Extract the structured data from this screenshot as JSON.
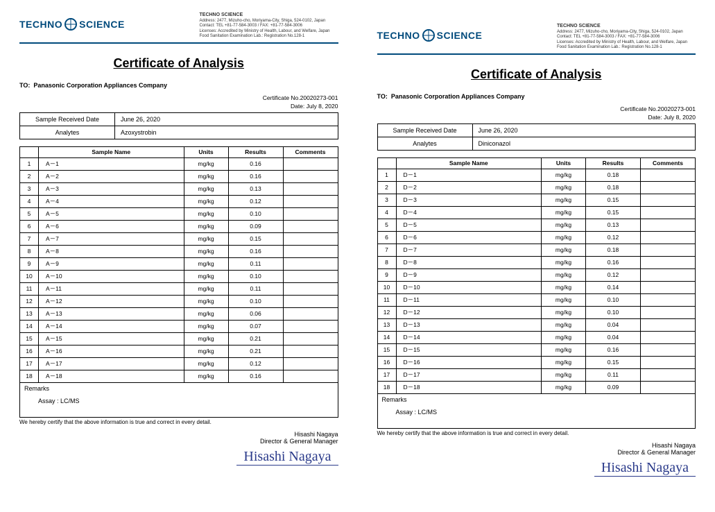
{
  "company": {
    "logo_left": "TECHNO",
    "logo_right": "SCIENCE",
    "name": "TECHNO SCIENCE",
    "address": "Address: 2477, Mizuho-cho, Moriyama-City, Shiga, 524-0102, Japan",
    "contact": "Contact: TEL +81-77-584-3003 / FAX: +81-77-584-3006",
    "license1": "Licenses: Accredited by Ministry of Health, Labour, and Welfare, Japan",
    "license2": "Food Sanitation Examination Lab.: Registration No.128-1"
  },
  "title": "Certificate of Analysis",
  "to_label": "TO:",
  "to_value": "Panasonic Corporation Appliances Company",
  "cert_no_label": "Certificate No.",
  "date_label": "Date:",
  "received_label": "Sample Received Date",
  "analytes_label": "Analytes",
  "col_sample": "Sample Name",
  "col_units": "Units",
  "col_results": "Results",
  "col_comments": "Comments",
  "remarks_label": "Remarks",
  "assay_line": "Assay  :  LC/MS",
  "certify": "We hereby certify that the above information is true and correct in every detail.",
  "signer_name": "Hisashi Nagaya",
  "signer_title": "Director & General Manager",
  "signature_script": "Hisashi Nagaya",
  "certs": [
    {
      "cert_no": "20020273-001",
      "date": "July  8, 2020",
      "received": "June 26, 2020",
      "analyte": "Azoxystrobin",
      "unit": "mg/kg",
      "rows": [
        {
          "n": "1",
          "name": "A－1",
          "r": "0.16"
        },
        {
          "n": "2",
          "name": "A－2",
          "r": "0.16"
        },
        {
          "n": "3",
          "name": "A－3",
          "r": "0.13"
        },
        {
          "n": "4",
          "name": "A－4",
          "r": "0.12"
        },
        {
          "n": "5",
          "name": "A－5",
          "r": "0.10"
        },
        {
          "n": "6",
          "name": "A－6",
          "r": "0.09"
        },
        {
          "n": "7",
          "name": "A－7",
          "r": "0.15"
        },
        {
          "n": "8",
          "name": "A－8",
          "r": "0.16"
        },
        {
          "n": "9",
          "name": "A－9",
          "r": "0.11"
        },
        {
          "n": "10",
          "name": "A－10",
          "r": "0.10"
        },
        {
          "n": "11",
          "name": "A－11",
          "r": "0.11"
        },
        {
          "n": "12",
          "name": "A－12",
          "r": "0.10"
        },
        {
          "n": "13",
          "name": "A－13",
          "r": "0.06"
        },
        {
          "n": "14",
          "name": "A－14",
          "r": "0.07"
        },
        {
          "n": "15",
          "name": "A－15",
          "r": "0.21"
        },
        {
          "n": "16",
          "name": "A－16",
          "r": "0.21"
        },
        {
          "n": "17",
          "name": "A－17",
          "r": "0.12"
        },
        {
          "n": "18",
          "name": "A－18",
          "r": "0.16"
        }
      ]
    },
    {
      "cert_no": "20020273-001",
      "date": "July  8, 2020",
      "received": "June 26, 2020",
      "analyte": "Diniconazol",
      "unit": "mg/kg",
      "rows": [
        {
          "n": "1",
          "name": "D－1",
          "r": "0.18"
        },
        {
          "n": "2",
          "name": "D－2",
          "r": "0.18"
        },
        {
          "n": "3",
          "name": "D－3",
          "r": "0.15"
        },
        {
          "n": "4",
          "name": "D－4",
          "r": "0.15"
        },
        {
          "n": "5",
          "name": "D－5",
          "r": "0.13"
        },
        {
          "n": "6",
          "name": "D－6",
          "r": "0.12"
        },
        {
          "n": "7",
          "name": "D－7",
          "r": "0.18"
        },
        {
          "n": "8",
          "name": "D－8",
          "r": "0.16"
        },
        {
          "n": "9",
          "name": "D－9",
          "r": "0.12"
        },
        {
          "n": "10",
          "name": "D－10",
          "r": "0.14"
        },
        {
          "n": "11",
          "name": "D－11",
          "r": "0.10"
        },
        {
          "n": "12",
          "name": "D－12",
          "r": "0.10"
        },
        {
          "n": "13",
          "name": "D－13",
          "r": "0.04"
        },
        {
          "n": "14",
          "name": "D－14",
          "r": "0.04"
        },
        {
          "n": "15",
          "name": "D－15",
          "r": "0.16"
        },
        {
          "n": "16",
          "name": "D－16",
          "r": "0.15"
        },
        {
          "n": "17",
          "name": "D－17",
          "r": "0.11"
        },
        {
          "n": "18",
          "name": "D－18",
          "r": "0.09"
        }
      ]
    }
  ]
}
